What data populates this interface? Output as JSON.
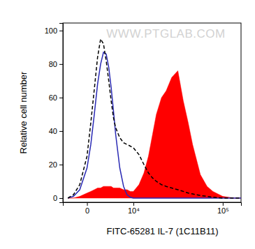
{
  "chart_data": {
    "type": "histogram",
    "x_label": "FITC-65281 IL-7 (1C11B11)",
    "y_label": "Relative cell number",
    "annotations": [
      "WWW.PTGLAB.COM"
    ],
    "log": "x",
    "grid": false,
    "xlim": [
      -4000,
      150000
    ],
    "xticks": [
      0,
      {
        "value": 10000,
        "label": "10⁴"
      },
      {
        "value": 100000,
        "label": "10⁵"
      }
    ],
    "ylim": [
      -2.5,
      104.5
    ],
    "yticks": [
      0,
      20,
      40,
      60,
      80,
      100
    ],
    "x": [
      -3000,
      -2000,
      -1000,
      0,
      500,
      1000,
      1500,
      2000,
      2500,
      3000,
      3500,
      4000,
      4500,
      5000,
      6000,
      7000,
      8000,
      9000,
      10000,
      12000,
      14000,
      16000,
      18000,
      20000,
      23000,
      26000,
      30000,
      35000,
      40000,
      45000,
      50000,
      60000,
      70000,
      80000,
      100000,
      130000,
      150000
    ],
    "series": [
      {
        "type": "area",
        "color": "#ff0000",
        "line_style": "solid",
        "values": [
          0,
          0,
          1,
          3,
          4,
          5,
          6,
          6,
          7,
          7,
          7,
          7,
          6,
          6,
          6,
          5,
          5,
          4,
          4,
          8,
          15,
          25,
          38,
          50,
          60,
          64,
          72,
          76,
          58,
          45,
          32,
          14,
          7,
          4,
          1,
          0,
          0
        ]
      },
      {
        "type": "line",
        "color": "#2a2ab4",
        "line_style": "solid",
        "values": [
          0,
          1,
          5,
          18,
          32,
          50,
          68,
          80,
          87,
          86,
          78,
          66,
          52,
          38,
          18,
          7,
          2,
          0.5,
          0,
          0,
          0,
          0,
          0,
          0,
          0,
          0,
          0,
          0,
          0,
          0,
          0,
          0,
          0,
          0,
          0,
          0,
          0
        ]
      },
      {
        "type": "line",
        "color": "#000000",
        "line_style": "dashed",
        "values": [
          0,
          2,
          8,
          25,
          45,
          65,
          84,
          95,
          92,
          82,
          70,
          58,
          48,
          42,
          36,
          33,
          32,
          31,
          30,
          26,
          20,
          15,
          12,
          10,
          8,
          7,
          6,
          5,
          4,
          3,
          2.5,
          1.5,
          1,
          0.5,
          0,
          0,
          0
        ]
      }
    ]
  }
}
